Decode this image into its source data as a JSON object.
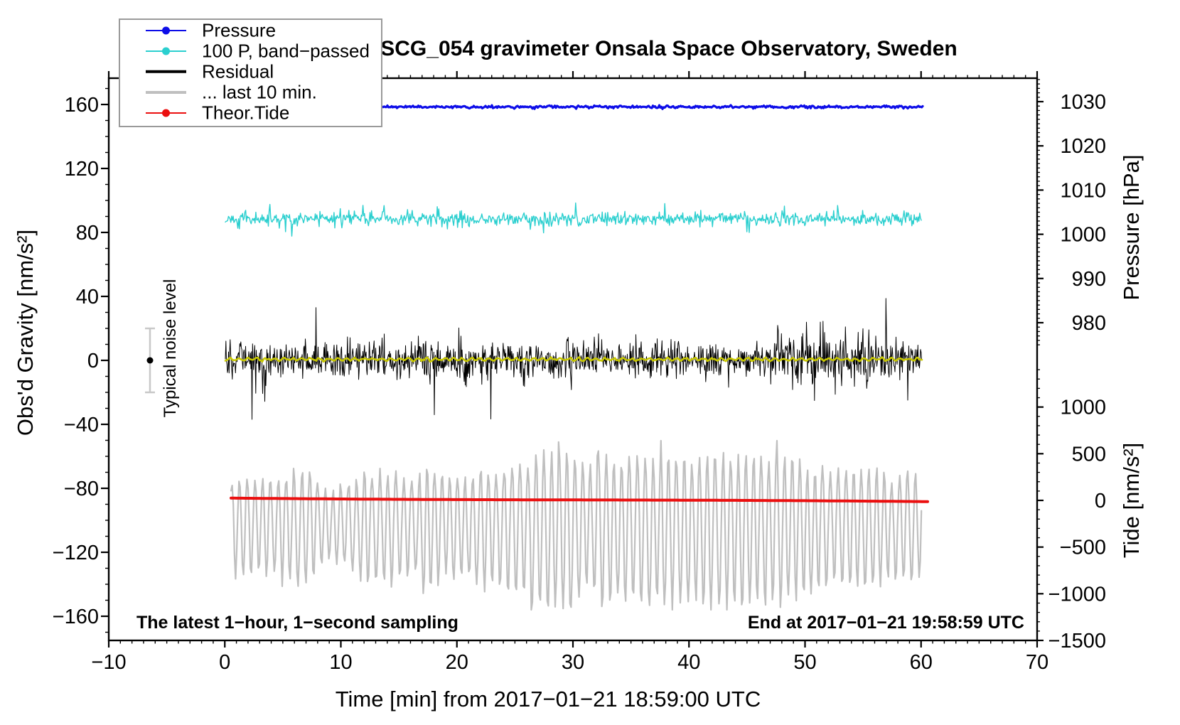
{
  "title": "SCG_054 gravimeter Onsala Space Observatory, Sweden",
  "annotations": {
    "bottom_left": "The latest 1−hour, 1−second sampling",
    "bottom_right": "End at 2017−01−21 19:58:59 UTC",
    "noise_label": "Typical noise level"
  },
  "axes": {
    "x": {
      "label": "Time [min] from 2017−01−21 18:59:00 UTC",
      "range": [
        -10,
        70
      ],
      "major_ticks": [
        -10,
        0,
        10,
        20,
        30,
        40,
        50,
        60,
        70
      ],
      "minor_step": 1
    },
    "gravity": {
      "label": "Obs'd Gravity [nm/s²]",
      "major_ticks": [
        160,
        120,
        80,
        40,
        0,
        -40,
        -80,
        -120,
        -160
      ],
      "minor_step": 10,
      "approx_range": [
        -175,
        176
      ]
    },
    "pressure": {
      "label": "Pressure [hPa]",
      "major_ticks": [
        1030,
        1020,
        1010,
        1000,
        990,
        980
      ],
      "minor_step": 1
    },
    "tide": {
      "label": "Tide [nm/s²]",
      "major_ticks": [
        1000,
        500,
        0,
        -500,
        -1000,
        -1500
      ],
      "minor_step": 100
    }
  },
  "legend": {
    "items": [
      {
        "label": "Pressure",
        "color": "#0d0de8",
        "marker": true
      },
      {
        "label": "100 P, band−passed",
        "color": "#2bcfcf",
        "marker": true
      },
      {
        "label": "Residual",
        "color": "#000000",
        "marker": false
      },
      {
        "label": "... last 10 min.",
        "color": "#bfbfbf",
        "marker": false
      },
      {
        "label": "Theor.Tide",
        "color": "#eb0f0f",
        "marker": true
      }
    ]
  },
  "colors": {
    "pressure_blue": "#0d0de8",
    "bandpassed_cyan": "#2bcfcf",
    "residual_black": "#000000",
    "last10min_gray": "#bfbfbf",
    "tide_red": "#eb0f0f",
    "smoothed_yellow": "#c8c800",
    "errorbar_gray": "#c8c8c8",
    "frame_black": "#000000",
    "legend_border": "#9a9a9a"
  },
  "chart_data": {
    "type": "line",
    "title": "SCG_054 gravimeter Onsala Space Observatory, Sweden",
    "x_data_span_min": [
      0,
      60.2
    ],
    "series": [
      {
        "name": "Pressure",
        "axis": "pressure",
        "units": "hPa",
        "approx_constant_value": 1028.8,
        "noise_amplitude": 0.2
      },
      {
        "name": "100 P, band−passed",
        "axis": "gravity",
        "units": "nm/s²",
        "mean": 88,
        "typical_amplitude": 4.5,
        "max_spike": 12
      },
      {
        "name": "Residual",
        "axis": "gravity",
        "units": "nm/s²",
        "mean": 0,
        "typical_amplitude": 19,
        "max_spike": 41
      },
      {
        "name": "Residual smoothed (yellow overlay)",
        "axis": "gravity",
        "units": "nm/s²",
        "mean": 0,
        "typical_amplitude": 1.5
      },
      {
        "name": "... last 10 min.",
        "axis": "tide",
        "units": "nm/s²",
        "mean": -230,
        "typical_amplitude": 450,
        "max_peak": 560,
        "max_dip": -1030
      },
      {
        "name": "Theor.Tide",
        "axis": "tide",
        "units": "nm/s²",
        "start_value": 24,
        "end_value": -18
      }
    ],
    "noise_marker": {
      "x_min": -6.4,
      "value": 0,
      "half_range": 20
    }
  }
}
